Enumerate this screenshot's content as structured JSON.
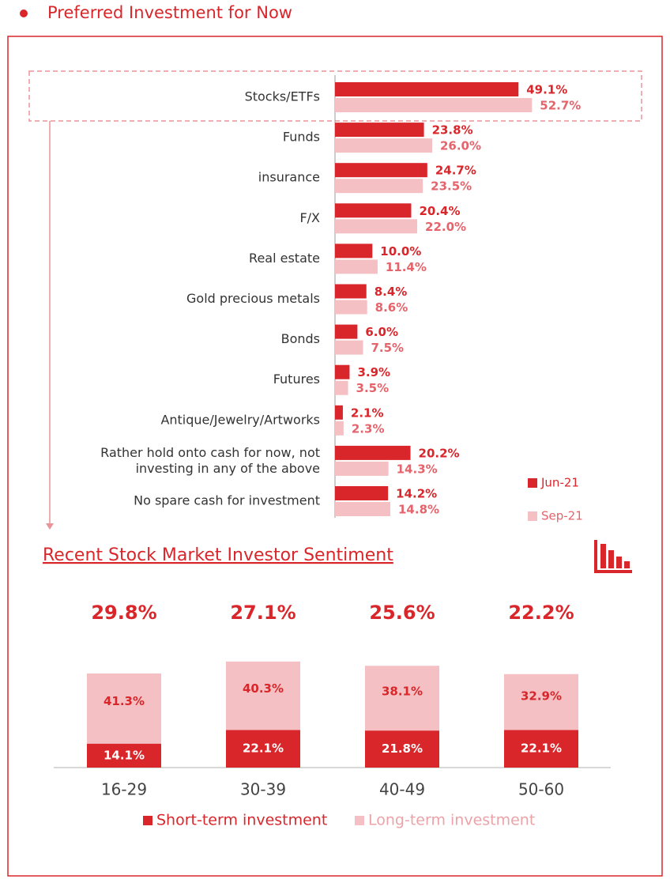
{
  "header": {
    "title": "Preferred Investment for Now"
  },
  "chart_data": [
    {
      "type": "hbar",
      "categories": [
        "Stocks/ETFs",
        "Funds",
        "insurance",
        "F/X",
        "Real estate",
        "Gold precious metals",
        "Bonds",
        "Futures",
        "Antique/Jewelry/Artworks",
        "Rather hold onto cash for now, not investing in any of the above",
        "No spare cash for investment"
      ],
      "series": [
        {
          "name": "Jun-21",
          "color": "#d9262b",
          "label_color": "#d9262b",
          "values": [
            49.1,
            23.8,
            24.7,
            20.4,
            10.0,
            8.4,
            6.0,
            3.9,
            2.1,
            20.2,
            14.2
          ],
          "value_labels": [
            "49.1%",
            "23.8%",
            "24.7%",
            "20.4%",
            "10.0%",
            "8.4%",
            "6.0%",
            "3.9%",
            "2.1%",
            "20.2%",
            "14.2%"
          ]
        },
        {
          "name": "Sep-21",
          "color": "#f4c0c3",
          "label_color": "#e5636b",
          "values": [
            52.7,
            26.0,
            23.5,
            22.0,
            11.4,
            8.6,
            7.5,
            3.5,
            2.3,
            14.3,
            14.8
          ],
          "value_labels": [
            "52.7%",
            "26.0%",
            "23.5%",
            "22.0%",
            "11.4%",
            "8.6%",
            "7.5%",
            "3.5%",
            "2.3%",
            "14.3%",
            "14.8%"
          ]
        }
      ]
    },
    {
      "type": "stacked_bar",
      "title": "Recent Stock Market Investor Sentiment",
      "categories": [
        "16-29",
        "30-39",
        "40-49",
        "50-60"
      ],
      "annotations": [
        "29.8%",
        "27.1%",
        "25.6%",
        "22.2%"
      ],
      "series": [
        {
          "name": "Short-term investment",
          "color": "#d9262b",
          "label_color": "#ffffff",
          "legend_color": "#d9262b",
          "values": [
            14.1,
            22.1,
            21.8,
            22.1
          ],
          "value_labels": [
            "14.1%",
            "22.1%",
            "21.8%",
            "22.1%"
          ]
        },
        {
          "name": "Long-term investment",
          "color": "#f4c0c3",
          "label_color": "#d9262b",
          "legend_color": "#eba3a8",
          "values": [
            41.3,
            40.3,
            38.1,
            32.9
          ],
          "value_labels": [
            "41.3%",
            "40.3%",
            "38.1%",
            "32.9%"
          ]
        }
      ]
    }
  ]
}
